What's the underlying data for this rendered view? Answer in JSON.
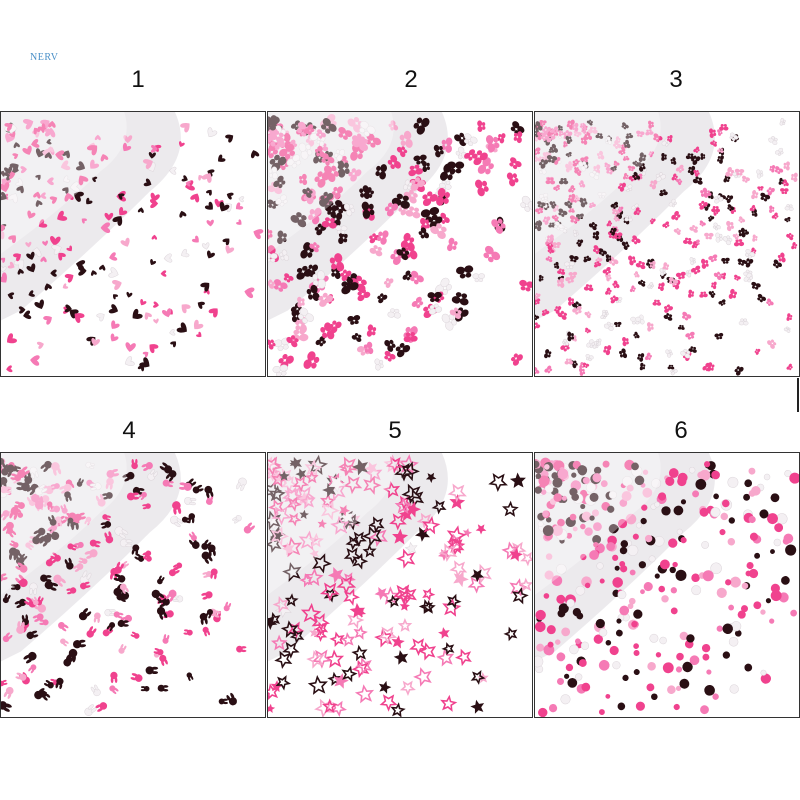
{
  "watermark": "NERV",
  "colors": {
    "hot_pink": "#f0428e",
    "pink": "#f57ab5",
    "light_pink": "#f7a8cc",
    "black": "#2a0f14",
    "white": "#f4f0f3",
    "bag": "#e9e6ea"
  },
  "panels": [
    {
      "label": "1",
      "shape": "heart-icon"
    },
    {
      "label": "2",
      "shape": "butterfly-icon"
    },
    {
      "label": "3",
      "shape": "small-butterfly-icon"
    },
    {
      "label": "4",
      "shape": "bunny-head-icon"
    },
    {
      "label": "5",
      "shape": "star-outline-icon"
    },
    {
      "label": "6",
      "shape": "dot-icon"
    }
  ]
}
